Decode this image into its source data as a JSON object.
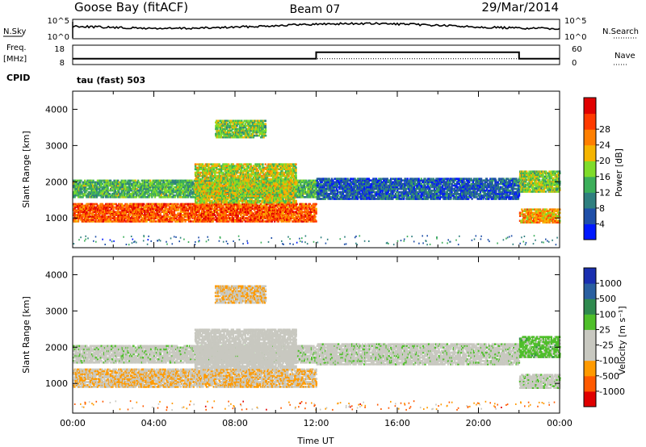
{
  "header": {
    "station": "Goose Bay (fitACF)",
    "beam": "Beam 07",
    "date": "29/Mar/2014"
  },
  "noise_panel": {
    "left_label": "N.Sky",
    "left_ticks": [
      "10^5",
      "10^0"
    ],
    "right_ticks": [
      "10^5",
      "10^0"
    ],
    "right_label": "N.Search"
  },
  "freq_panel": {
    "left_label_line1": "Freq.",
    "left_label_line2": "[MHz]",
    "left_ticks": [
      "18",
      "8"
    ],
    "right_ticks": [
      "60",
      "0"
    ],
    "right_label": "Nave",
    "cpid_label": "CPID",
    "cpid_value": "tau (fast) 503",
    "freq_level": 11,
    "nave_steps": [
      {
        "from_hour": 0,
        "to_hour": 12,
        "value": 18
      },
      {
        "from_hour": 12,
        "to_hour": 22,
        "value": 38
      },
      {
        "from_hour": 22,
        "to_hour": 24,
        "value": 18
      }
    ]
  },
  "colors": {
    "power_scale": [
      "#0018ff",
      "#1f4fa8",
      "#2f7f7f",
      "#3caf5a",
      "#7fdc2a",
      "#f5b400",
      "#ff7f00",
      "#ff3a00",
      "#e00000"
    ],
    "velocity_scale": [
      "#e00000",
      "#ff5a00",
      "#ff9a00",
      "#c8c8c0",
      "#c8c8c0",
      "#4fbf2a",
      "#2f8a4f",
      "#2a5fa0",
      "#1a2fb0"
    ]
  },
  "chart_data": [
    {
      "type": "heatmap",
      "name": "power",
      "ylabel": "Slant Range [km]",
      "ylim": [
        180,
        4500
      ],
      "yticks": [
        1000,
        2000,
        3000,
        4000
      ],
      "xlim": [
        0,
        24
      ],
      "colorbar": {
        "label": "Power [dB]",
        "ticks": [
          "4",
          "8",
          "12",
          "16",
          "20",
          "24",
          "28"
        ],
        "range": [
          0,
          30
        ]
      },
      "bands": [
        {
          "x0": 0,
          "x1": 12,
          "ylow": 880,
          "yhigh": 1400,
          "value": 24
        },
        {
          "x0": 0,
          "x1": 12,
          "ylow": 1550,
          "yhigh": 2050,
          "value": 12
        },
        {
          "x0": 6,
          "x1": 11,
          "ylow": 1400,
          "yhigh": 2500,
          "value": 16
        },
        {
          "x0": 7,
          "x1": 9.5,
          "ylow": 3200,
          "yhigh": 3700,
          "value": 14
        },
        {
          "x0": 12,
          "x1": 22,
          "ylow": 1500,
          "yhigh": 2100,
          "value": 6
        },
        {
          "x0": 22,
          "x1": 24,
          "ylow": 850,
          "yhigh": 1250,
          "value": 20
        },
        {
          "x0": 22,
          "x1": 24,
          "ylow": 1700,
          "yhigh": 2300,
          "value": 14
        }
      ]
    },
    {
      "type": "heatmap",
      "name": "velocity",
      "ylabel": "Slant Range [km]",
      "xlabel": "Time UT",
      "ylim": [
        180,
        4500
      ],
      "yticks": [
        1000,
        2000,
        3000,
        4000
      ],
      "xlim": [
        0,
        24
      ],
      "xticks": [
        "00:00",
        "04:00",
        "08:00",
        "12:00",
        "16:00",
        "20:00",
        "00:00"
      ],
      "colorbar": {
        "label": "Velocity [m s⁻¹]",
        "ticks": [
          "-1000",
          "-500",
          "-100",
          "-25",
          "25",
          "100",
          "500",
          "1000"
        ],
        "range": [
          -1000,
          1000
        ]
      },
      "bands": [
        {
          "x0": 0,
          "x1": 12,
          "ylow": 880,
          "yhigh": 1400,
          "value": -300
        },
        {
          "x0": 0,
          "x1": 12,
          "ylow": 1550,
          "yhigh": 2050,
          "value": 0
        },
        {
          "x0": 6,
          "x1": 11,
          "ylow": 1400,
          "yhigh": 2500,
          "value": -50
        },
        {
          "x0": 7,
          "x1": 9.5,
          "ylow": 3200,
          "yhigh": 3700,
          "value": -300
        },
        {
          "x0": 12,
          "x1": 22,
          "ylow": 1500,
          "yhigh": 2100,
          "value": 0
        },
        {
          "x0": 22,
          "x1": 24,
          "ylow": 850,
          "yhigh": 1250,
          "value": 0
        },
        {
          "x0": 22,
          "x1": 24,
          "ylow": 1700,
          "yhigh": 2300,
          "value": 200
        }
      ]
    }
  ]
}
